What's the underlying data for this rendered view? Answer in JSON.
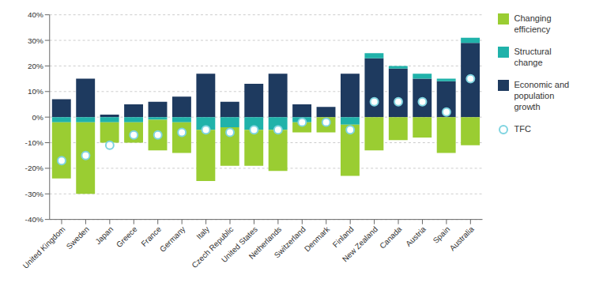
{
  "chart_data": {
    "type": "bar",
    "stacked": true,
    "categories": [
      "United Kingdom",
      "Sweden",
      "Japan",
      "Greece",
      "France",
      "Germany",
      "Italy",
      "Czech Republic",
      "United States",
      "Netherlands",
      "Switzerland",
      "Denmark",
      "Finland",
      "New Zealand",
      "Canada",
      "Austria",
      "Spain",
      "Australia"
    ],
    "series": [
      {
        "name": "Changing\nefficiency",
        "color": "#9ACD32",
        "values": [
          -22,
          -28,
          -8,
          -8,
          -12,
          -12,
          -20,
          -15,
          -14,
          -16,
          -4,
          -6,
          -20,
          -13,
          -9,
          -8,
          -14,
          -11
        ]
      },
      {
        "name": "Structural\nchange",
        "color": "#20B2AA",
        "values": [
          -2,
          -2,
          -2,
          -2,
          -1,
          -2,
          -5,
          -4,
          -5,
          -5,
          -2,
          0,
          -3,
          2,
          1,
          2,
          1,
          2
        ]
      },
      {
        "name": "Economic and\npopulation\ngrowth",
        "color": "#1E3A5F",
        "values": [
          7,
          15,
          1,
          5,
          6,
          8,
          17,
          6,
          13,
          17,
          5,
          4,
          17,
          23,
          19,
          15,
          14,
          29
        ]
      },
      {
        "name": "TFC",
        "type": "scatter",
        "marker": "circle",
        "color": "#7FD4E0",
        "values": [
          -17,
          -15,
          -11,
          -7,
          -7,
          -6,
          -5,
          -6,
          -5,
          -5,
          -2,
          -2,
          -5,
          6,
          6,
          6,
          2,
          15
        ]
      }
    ],
    "ylim": [
      -40,
      40
    ],
    "yticks": [
      {
        "value": -40,
        "label": "-40%"
      },
      {
        "value": -30,
        "label": "-30%"
      },
      {
        "value": -20,
        "label": "-20%"
      },
      {
        "value": -10,
        "label": "-10%"
      },
      {
        "value": 0,
        "label": "0%"
      },
      {
        "value": 10,
        "label": "10%"
      },
      {
        "value": 20,
        "label": "20%"
      },
      {
        "value": 30,
        "label": "30%"
      },
      {
        "value": 40,
        "label": "40%"
      }
    ],
    "grid": true,
    "legend": "right"
  }
}
